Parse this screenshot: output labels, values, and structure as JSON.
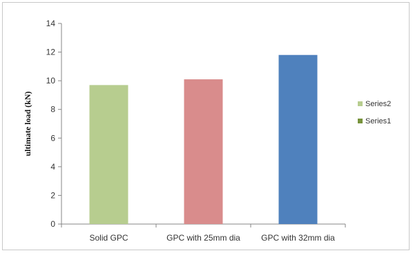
{
  "chart_data": {
    "type": "bar",
    "title": "",
    "xlabel": "",
    "ylabel": "ultimate load (kN)",
    "categories": [
      "Solid GPC",
      "GPC with 25mm dia",
      "GPC with 32mm dia"
    ],
    "values": [
      9.7,
      10.1,
      11.8
    ],
    "bar_colors": [
      "#b7cd8f",
      "#d98c8c",
      "#4f81bd"
    ],
    "ylim": [
      0,
      14
    ],
    "yticks": [
      0,
      2,
      4,
      6,
      8,
      10,
      12,
      14
    ],
    "grid": false,
    "legend_position": "right",
    "legend": [
      {
        "name": "Series2",
        "color": "#b7cd8f"
      },
      {
        "name": "Series1",
        "color": "#77933c"
      }
    ]
  }
}
